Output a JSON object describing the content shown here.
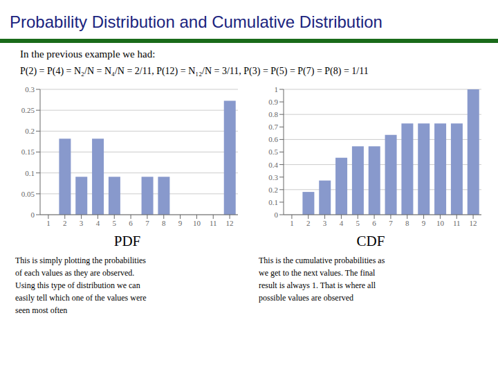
{
  "title": "Probability Distribution and Cumulative Distribution",
  "subtitle": "In the previous example we had:",
  "annotations": [
    "P(2) = P(4) = N₂/N = N₄/N = 2/11,  P(12) = N₁₂/N = 3/11,  P(3) = P(5) = P(7) = P(8) = 1/11"
  ],
  "chart_data": [
    {
      "type": "bar",
      "x_label": "PDF",
      "categories": [
        1,
        2,
        3,
        4,
        5,
        6,
        7,
        8,
        9,
        10,
        11,
        12
      ],
      "values": [
        0,
        0.18182,
        0.09091,
        0.18182,
        0.09091,
        0,
        0.09091,
        0.09091,
        0,
        0,
        0,
        0.27273
      ],
      "color": "#8899CC",
      "ylim": [
        0,
        0.3
      ],
      "yticks": [
        0,
        0.05,
        0.1,
        0.15,
        0.2,
        0.25,
        0.3
      ],
      "grid": true,
      "annotations": [
        "This is simply plotting the probabilities\nof each values as they are observed.\nUsing this type of distribution we can\neasily tell which one of the values were\nseen most often"
      ]
    },
    {
      "type": "bar",
      "x_label": "CDF",
      "categories": [
        1,
        2,
        3,
        4,
        5,
        6,
        7,
        8,
        9,
        10,
        11,
        12
      ],
      "values": [
        0,
        0.18182,
        0.27273,
        0.45455,
        0.54545,
        0.54545,
        0.63636,
        0.72727,
        0.72727,
        0.72727,
        0.72727,
        1.0
      ],
      "color": "#8899CC",
      "ylim": [
        0,
        1.0
      ],
      "yticks": [
        0,
        0.1,
        0.2,
        0.3,
        0.4,
        0.5,
        0.6,
        0.7,
        0.8,
        0.9,
        1
      ],
      "grid": true,
      "annotations": [
        "This is the cumulative probabilities as\nwe get to the next values. The final\nresult is always 1. That is where all\npossible values are observed"
      ]
    }
  ]
}
